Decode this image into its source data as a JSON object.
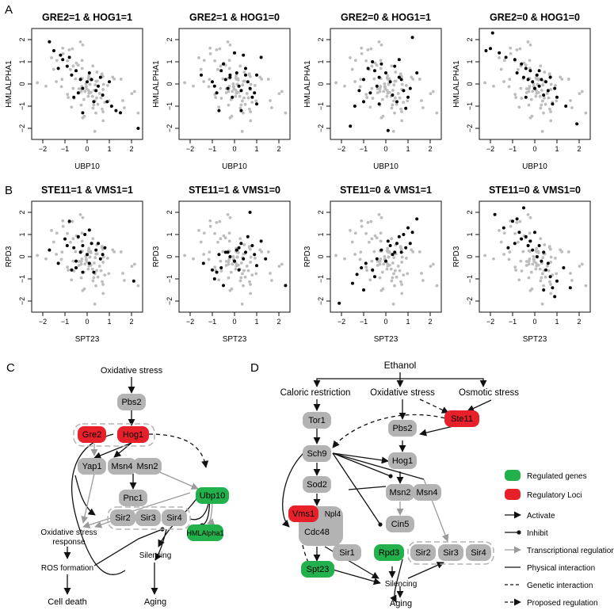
{
  "panel_labels": {
    "A": "A",
    "B": "B",
    "C": "C",
    "D": "D"
  },
  "row_a": {
    "xlabel": "UBP10",
    "ylabel": "HMLALPHA1",
    "titles": [
      "GRE2=1 & HOG1=1",
      "GRE2=1 & HOG1=0",
      "GRE2=0 & HOG1=1",
      "GRE2=0 & HOG1=0"
    ]
  },
  "row_b": {
    "xlabel": "SPT23",
    "ylabel": "RPD3",
    "titles": [
      "STE11=1 & VMS1=1",
      "STE11=1 & VMS1=0",
      "STE11=0 & VMS1=1",
      "STE11=0 & VMS1=0"
    ]
  },
  "ticks": {
    "x": [
      "−2",
      "−1",
      "0",
      "1",
      "2"
    ],
    "y": [
      "−2",
      "−1",
      "0",
      "1",
      "2"
    ]
  },
  "chart_data": [
    {
      "type": "scatter",
      "title": "GRE2=1 & HOG1=1",
      "xlabel": "UBP10",
      "ylabel": "HMLALPHA1",
      "xlim": [
        -2.5,
        2.5
      ],
      "ylim": [
        -2.5,
        2.5
      ],
      "series": [
        {
          "values": [
            [
              -1.7,
              1.9
            ],
            [
              -1.5,
              1.5
            ],
            [
              -1.2,
              1.3
            ],
            [
              -1.1,
              1.1
            ],
            [
              -0.9,
              0.8
            ],
            [
              -0.7,
              0.4
            ],
            [
              -0.5,
              0.6
            ],
            [
              -0.3,
              0.2
            ],
            [
              -0.2,
              -0.2
            ],
            [
              0,
              0.1
            ],
            [
              0.2,
              0.2
            ],
            [
              0.4,
              -0.3
            ],
            [
              0.5,
              -0.1
            ],
            [
              0.7,
              -0.5
            ],
            [
              0.9,
              -0.8
            ],
            [
              1.1,
              -1
            ],
            [
              1.3,
              -1.2
            ],
            [
              1.5,
              -1.3
            ],
            [
              2.3,
              -2
            ],
            [
              -0.4,
              -0.4
            ],
            [
              -0.6,
              -0.6
            ],
            [
              0.1,
              0.5
            ],
            [
              -0.8,
              1.2
            ],
            [
              -0.2,
              -1.3
            ],
            [
              1,
              0.1
            ],
            [
              0.6,
              0.3
            ],
            [
              -1.3,
              0.7
            ],
            [
              0.3,
              -0.8
            ]
          ]
        }
      ]
    },
    {
      "type": "scatter",
      "title": "GRE2=1 & HOG1=0",
      "xlabel": "UBP10",
      "ylabel": "HMLALPHA1",
      "xlim": [
        -2.5,
        2.5
      ],
      "ylim": [
        -2.5,
        2.5
      ],
      "series": [
        {
          "values": [
            [
              -1.0,
              0.1
            ],
            [
              -0.8,
              -0.4
            ],
            [
              -0.6,
              0.6
            ],
            [
              -0.5,
              0.9
            ],
            [
              -0.4,
              0.2
            ],
            [
              -0.3,
              -0.2
            ],
            [
              -0.2,
              0.4
            ],
            [
              -0.1,
              -0.6
            ],
            [
              0,
              1.4
            ],
            [
              0.1,
              0.5
            ],
            [
              0.2,
              -0.1
            ],
            [
              0.3,
              -0.3
            ],
            [
              0.4,
              1.3
            ],
            [
              0.5,
              0.4
            ],
            [
              0.6,
              0.1
            ],
            [
              0.7,
              -0.2
            ],
            [
              0.8,
              -0.6
            ],
            [
              0.9,
              -0.4
            ],
            [
              1,
              0.4
            ],
            [
              1.2,
              1.2
            ],
            [
              -1.5,
              0.4
            ],
            [
              -0.7,
              -1.2
            ],
            [
              0.3,
              -1.2
            ],
            [
              1,
              -0.9
            ],
            [
              -0.2,
              0.3
            ],
            [
              0.5,
              0.7
            ],
            [
              -0.9,
              -0.1
            ]
          ]
        }
      ]
    },
    {
      "type": "scatter",
      "title": "GRE2=0 & HOG1=1",
      "xlabel": "UBP10",
      "ylabel": "HMLALPHA1",
      "xlim": [
        -2.5,
        2.5
      ],
      "ylim": [
        -2.5,
        2.5
      ],
      "series": [
        {
          "values": [
            [
              -1.6,
              -1.9
            ],
            [
              -1.4,
              -1
            ],
            [
              -1.2,
              -0.3
            ],
            [
              -1.0,
              0.2
            ],
            [
              -0.8,
              0.7
            ],
            [
              -0.6,
              1
            ],
            [
              -0.5,
              0.6
            ],
            [
              -0.4,
              -0.1
            ],
            [
              -0.3,
              0.3
            ],
            [
              -0.2,
              0.9
            ],
            [
              0,
              0.5
            ],
            [
              0.2,
              0.1
            ],
            [
              0.3,
              -0.5
            ],
            [
              0.4,
              0.8
            ],
            [
              0.5,
              -0.8
            ],
            [
              0.6,
              0.3
            ],
            [
              0.7,
              0.2
            ],
            [
              0.8,
              -0.3
            ],
            [
              1,
              -0.6
            ],
            [
              1.2,
              2.1
            ],
            [
              1.4,
              0.5
            ],
            [
              0.1,
              -2.1
            ],
            [
              -0.7,
              -0.4
            ],
            [
              -0.3,
              -0.9
            ],
            [
              0.6,
              1.1
            ],
            [
              1.1,
              -0.2
            ],
            [
              -1,
              -0.8
            ],
            [
              0.9,
              -1.1
            ]
          ]
        }
      ]
    },
    {
      "type": "scatter",
      "title": "GRE2=0 & HOG1=0",
      "xlabel": "UBP10",
      "ylabel": "HMLALPHA1",
      "xlim": [
        -2.5,
        2.5
      ],
      "ylim": [
        -2.5,
        2.5
      ],
      "series": [
        {
          "values": [
            [
              -2.2,
              1.5
            ],
            [
              -2.0,
              1.6
            ],
            [
              -1.6,
              1.4
            ],
            [
              -1.3,
              1.2
            ],
            [
              -0.8,
              0.5
            ],
            [
              -0.6,
              0.9
            ],
            [
              -0.5,
              0.3
            ],
            [
              -0.4,
              0.7
            ],
            [
              -0.3,
              0.2
            ],
            [
              -0.2,
              0.6
            ],
            [
              -0.1,
              0.1
            ],
            [
              0,
              -0.2
            ],
            [
              0.1,
              0.4
            ],
            [
              0.2,
              -0.1
            ],
            [
              0.3,
              0.2
            ],
            [
              0.4,
              -0.5
            ],
            [
              0.5,
              0.1
            ],
            [
              0.6,
              -0.3
            ],
            [
              0.7,
              0.3
            ],
            [
              0.8,
              -0.9
            ],
            [
              1,
              -0.6
            ],
            [
              1.4,
              -1
            ],
            [
              1.9,
              -1.8
            ],
            [
              -0.9,
              1.1
            ],
            [
              0.2,
              0.6
            ],
            [
              -0.4,
              -0.6
            ],
            [
              0.9,
              -0.2
            ],
            [
              -1.9,
              2.3
            ]
          ]
        }
      ]
    },
    {
      "type": "scatter",
      "title": "STE11=1 & VMS1=1",
      "xlabel": "SPT23",
      "ylabel": "RPD3",
      "xlim": [
        -2.5,
        2.5
      ],
      "ylim": [
        -2.5,
        2.5
      ],
      "series": [
        {
          "values": [
            [
              -1.7,
              0.3
            ],
            [
              -1.3,
              -0.3
            ],
            [
              -1.0,
              0.8
            ],
            [
              -0.8,
              1.6
            ],
            [
              -0.7,
              -0.6
            ],
            [
              -0.6,
              0.4
            ],
            [
              -0.5,
              -0.2
            ],
            [
              -0.4,
              0.9
            ],
            [
              -0.3,
              0.2
            ],
            [
              -0.2,
              0.5
            ],
            [
              -0.1,
              1
            ],
            [
              0,
              0.1
            ],
            [
              0.1,
              -0.3
            ],
            [
              0.2,
              0.6
            ],
            [
              0.3,
              -0.7
            ],
            [
              0.4,
              0.3
            ],
            [
              0.5,
              0.6
            ],
            [
              0.6,
              -0.1
            ],
            [
              0.8,
              0.4
            ],
            [
              2.1,
              -1.1
            ],
            [
              -0.5,
              -0.5
            ],
            [
              -0.2,
              -0.7
            ],
            [
              0.7,
              0.1
            ],
            [
              -0.9,
              0.5
            ],
            [
              0.1,
              1.2
            ]
          ]
        }
      ]
    },
    {
      "type": "scatter",
      "title": "STE11=1 & VMS1=0",
      "xlabel": "SPT23",
      "ylabel": "RPD3",
      "xlim": [
        -2.5,
        2.5
      ],
      "ylim": [
        -2.5,
        2.5
      ],
      "series": [
        {
          "values": [
            [
              -1.4,
              -0.3
            ],
            [
              -1.0,
              -0.6
            ],
            [
              -0.9,
              -1
            ],
            [
              -0.7,
              0.1
            ],
            [
              -0.6,
              -0.5
            ],
            [
              -0.5,
              -1.3
            ],
            [
              -0.3,
              0.2
            ],
            [
              -0.2,
              0
            ],
            [
              0,
              -0.2
            ],
            [
              0.1,
              0.3
            ],
            [
              0.2,
              -0.6
            ],
            [
              0.3,
              0.6
            ],
            [
              0.4,
              -0.1
            ],
            [
              0.5,
              0.2
            ],
            [
              0.6,
              0.9
            ],
            [
              0.7,
              2
            ],
            [
              0.8,
              0.5
            ],
            [
              0.9,
              0.1
            ],
            [
              1,
              -0.4
            ],
            [
              1.4,
              -0.1
            ],
            [
              2.3,
              -1.3
            ],
            [
              -0.8,
              -0.7
            ],
            [
              0.2,
              0.4
            ],
            [
              1.2,
              0.7
            ],
            [
              -0.4,
              0.2
            ]
          ]
        }
      ]
    },
    {
      "type": "scatter",
      "title": "STE11=0 & VMS1=1",
      "xlabel": "SPT23",
      "ylabel": "RPD3",
      "xlim": [
        -2.5,
        2.5
      ],
      "ylim": [
        -2.5,
        2.5
      ],
      "series": [
        {
          "values": [
            [
              -2.1,
              -2.1
            ],
            [
              -1.5,
              -1.2
            ],
            [
              -1.3,
              -0.8
            ],
            [
              -1.1,
              -0.5
            ],
            [
              -0.9,
              -0.3
            ],
            [
              -0.6,
              -0.6
            ],
            [
              -0.4,
              -0.1
            ],
            [
              -0.2,
              0.3
            ],
            [
              0,
              -0.2
            ],
            [
              0.2,
              0.5
            ],
            [
              0.3,
              0.1
            ],
            [
              0.5,
              0.6
            ],
            [
              0.6,
              0.9
            ],
            [
              0.7,
              0.2
            ],
            [
              0.8,
              1
            ],
            [
              0.9,
              0.4
            ],
            [
              1,
              1.3
            ],
            [
              1.2,
              1.1
            ],
            [
              1.4,
              1.7
            ],
            [
              -1,
              -1.5
            ],
            [
              0.4,
              0.2
            ],
            [
              -0.5,
              -0.9
            ],
            [
              0.1,
              0.7
            ],
            [
              1.1,
              0.6
            ]
          ]
        }
      ]
    },
    {
      "type": "scatter",
      "title": "STE11=0 & VMS1=0",
      "xlabel": "SPT23",
      "ylabel": "RPD3",
      "xlim": [
        -2.5,
        2.5
      ],
      "ylim": [
        -2.5,
        2.5
      ],
      "series": [
        {
          "values": [
            [
              -1.8,
              1.9
            ],
            [
              -1.4,
              1.3
            ],
            [
              -1.0,
              1.6
            ],
            [
              -0.8,
              1.7
            ],
            [
              -0.7,
              1.1
            ],
            [
              -0.6,
              0.8
            ],
            [
              -0.5,
              2.2
            ],
            [
              -0.4,
              0.9
            ],
            [
              -0.3,
              0.5
            ],
            [
              -0.2,
              0.7
            ],
            [
              -0.1,
              0.3
            ],
            [
              0,
              1.1
            ],
            [
              0.1,
              0
            ],
            [
              0.2,
              0.5
            ],
            [
              0.3,
              -0.2
            ],
            [
              0.4,
              0.2
            ],
            [
              0.5,
              -0.6
            ],
            [
              0.6,
              -0.3
            ],
            [
              0.7,
              -0.9
            ],
            [
              0.8,
              -1.4
            ],
            [
              1,
              -1.1
            ],
            [
              1.3,
              -0.5
            ],
            [
              1.6,
              -1.4
            ],
            [
              0.9,
              -1.8
            ],
            [
              -1.2,
              0.4
            ],
            [
              0.4,
              -1.5
            ],
            [
              -0.9,
              0.6
            ]
          ]
        }
      ]
    }
  ],
  "diagram_c": {
    "title": "Oxidative stress",
    "nodes": {
      "pbs2": "Pbs2",
      "gre2": "Gre2",
      "hog1": "Hog1",
      "yap1": "Yap1",
      "msn4": "Msn4",
      "msn2": "Msn2",
      "pnc1": "Pnc1",
      "ubp10": "Ubp10",
      "sir2": "Sir2",
      "sir3": "Sir3",
      "sir4": "Sir4",
      "hmlalpha1": "HMLAlpha1"
    },
    "labels": {
      "oxidative_stress_response_1": "Oxidative stress",
      "oxidative_stress_response_2": "response",
      "ros": "ROS formation",
      "silencing": "Silencing",
      "cell_death": "Cell death",
      "aging": "Aging"
    }
  },
  "diagram_d": {
    "title": "Ethanol",
    "stresses": {
      "caloric": "Caloric restriction",
      "oxidative": "Oxidative stress",
      "osmotic": "Osmotic stress"
    },
    "nodes": {
      "tor1": "Tor1",
      "pbs2": "Pbs2",
      "ste11": "Ste11",
      "sch9": "Sch9",
      "hog1": "Hog1",
      "sod2": "Sod2",
      "msn2": "Msn2",
      "msn4": "Msn4",
      "vms1": "Vms1",
      "npl4": "Npl4",
      "cdc48": "Cdc48",
      "cin5": "Cin5",
      "sir1": "Sir1",
      "rpd3": "Rpd3",
      "sir2": "Sir2",
      "sir3": "Sir3",
      "sir4": "Sir4",
      "spt23": "Spt23"
    },
    "labels": {
      "silencing": "Silencing",
      "aging": "Aging"
    }
  },
  "legend": {
    "regulated_genes": "Regulated genes",
    "regulatory_loci": "Regulatory Loci",
    "activate": "Activate",
    "inhibit": "Inhibit",
    "transcriptional": "Transcriptional regulation",
    "physical": "Physical interaction",
    "genetic": "Genetic interaction",
    "proposed": "Proposed regulation"
  },
  "colors": {
    "regulated": "#22b14c",
    "regulatory": "#e8202a",
    "node": "#b3b3b3",
    "point_bg": "#bdbdbd",
    "point_fg": "#000000",
    "transcriptional": "#9a9a9a"
  }
}
